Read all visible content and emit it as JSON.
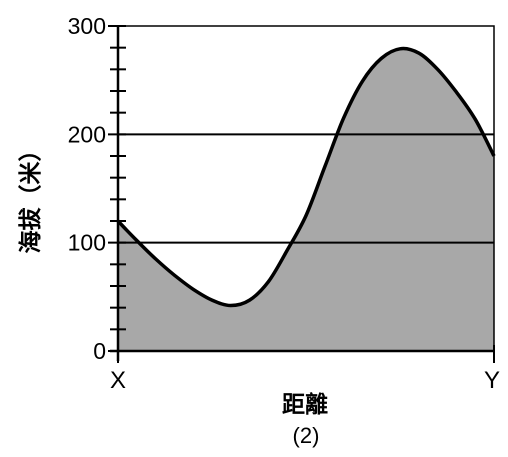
{
  "caption": "(2)",
  "chart_data": {
    "type": "area",
    "title": "",
    "xlabel": "距離",
    "ylabel": "海拔（米）",
    "x_start_label": "X",
    "x_end_label": "Y",
    "ylim": [
      0,
      300
    ],
    "yticks": [
      {
        "value": 0,
        "label": "0"
      },
      {
        "value": 100,
        "label": "100"
      },
      {
        "value": 200,
        "label": "200"
      },
      {
        "value": 300,
        "label": "300"
      }
    ],
    "minor_tick_step": 20,
    "gridlines_y": [
      100,
      200
    ],
    "x_unit": "relative distance X→Y (0 to 1)",
    "series": [
      {
        "x": [
          0.0,
          0.05,
          0.1,
          0.15,
          0.2,
          0.25,
          0.3,
          0.35,
          0.4,
          0.45,
          0.5,
          0.55,
          0.6,
          0.65,
          0.7,
          0.75,
          0.8,
          0.85,
          0.9,
          0.95,
          1.0
        ],
        "y": [
          120,
          102,
          85,
          70,
          57,
          47,
          42,
          47,
          64,
          93,
          125,
          170,
          215,
          249,
          270,
          279,
          275,
          260,
          239,
          214,
          180
        ]
      }
    ],
    "fill_color": "#a8a8a8",
    "line_color": "#000000"
  }
}
